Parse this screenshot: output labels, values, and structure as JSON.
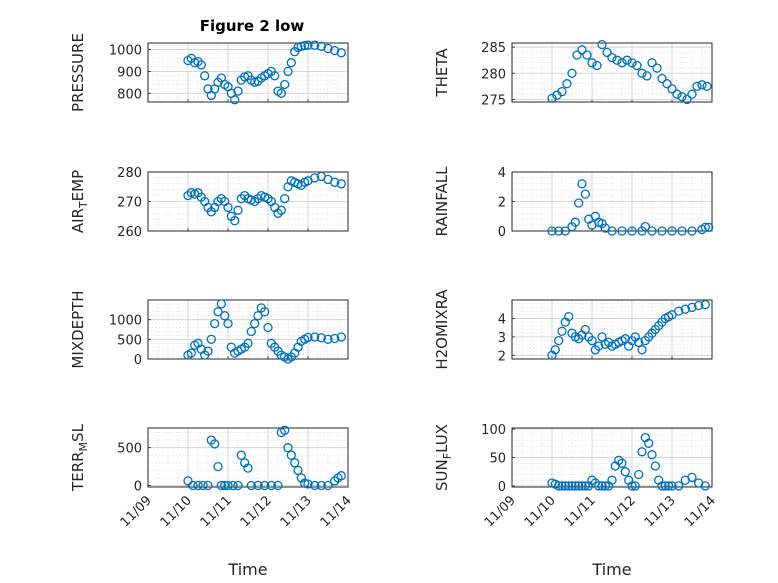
{
  "figure": {
    "title": "Figure 2 low",
    "series_color": "#0072BD"
  },
  "chart_data": [
    {
      "type": "scatter",
      "ylabel": "PRESSURE",
      "ylim": [
        760,
        1030
      ],
      "yticks": [
        800,
        900,
        1000
      ],
      "grid": true,
      "x": [
        "11/10 00:00",
        "11/10 02:00",
        "11/10 04:00",
        "11/10 06:00",
        "11/10 08:00",
        "11/10 10:00",
        "11/10 12:00",
        "11/10 14:00",
        "11/10 16:00",
        "11/10 18:00",
        "11/10 20:00",
        "11/10 22:00",
        "11/11 00:00",
        "11/11 02:00",
        "11/11 04:00",
        "11/11 06:00",
        "11/11 08:00",
        "11/11 10:00",
        "11/11 12:00",
        "11/11 14:00",
        "11/11 16:00",
        "11/11 18:00",
        "11/11 20:00",
        "11/11 22:00",
        "11/12 00:00",
        "11/12 02:00",
        "11/12 04:00",
        "11/12 06:00",
        "11/12 08:00",
        "11/12 10:00",
        "11/12 12:00",
        "11/12 14:00",
        "11/12 16:00",
        "11/12 18:00",
        "11/12 20:00",
        "11/12 22:00",
        "11/13 00:00",
        "11/13 04:00",
        "11/13 08:00",
        "11/13 12:00",
        "11/13 16:00",
        "11/13 20:00"
      ],
      "y": [
        950,
        960,
        940,
        945,
        930,
        880,
        820,
        790,
        820,
        850,
        870,
        840,
        830,
        800,
        770,
        810,
        860,
        875,
        880,
        860,
        850,
        855,
        870,
        880,
        890,
        900,
        880,
        810,
        800,
        840,
        900,
        940,
        990,
        1010,
        1015,
        1018,
        1020,
        1020,
        1015,
        1005,
        995,
        985
      ]
    },
    {
      "type": "scatter",
      "ylabel": "THETA",
      "ylim": [
        274.5,
        285.8
      ],
      "yticks": [
        275,
        280,
        285
      ],
      "grid": true,
      "x": [
        "11/10 00:00",
        "11/10 03:00",
        "11/10 06:00",
        "11/10 09:00",
        "11/10 12:00",
        "11/10 15:00",
        "11/10 18:00",
        "11/10 21:00",
        "11/11 00:00",
        "11/11 03:00",
        "11/11 06:00",
        "11/11 09:00",
        "11/11 12:00",
        "11/11 15:00",
        "11/11 18:00",
        "11/11 21:00",
        "11/12 00:00",
        "11/12 03:00",
        "11/12 06:00",
        "11/12 09:00",
        "11/12 12:00",
        "11/12 15:00",
        "11/12 18:00",
        "11/12 21:00",
        "11/13 00:00",
        "11/13 03:00",
        "11/13 06:00",
        "11/13 09:00",
        "11/13 12:00",
        "11/13 15:00",
        "11/13 18:00",
        "11/13 21:00"
      ],
      "y": [
        275.2,
        275.8,
        276.5,
        278,
        280,
        283.5,
        284.5,
        283.5,
        282,
        281.5,
        285.5,
        284,
        283,
        282.5,
        282,
        282.5,
        282,
        281.5,
        280,
        279.5,
        282,
        281,
        279,
        278,
        277,
        276,
        275.5,
        275,
        276,
        277.5,
        277.8,
        277.5
      ]
    },
    {
      "type": "scatter",
      "ylabel": "AIR_TEMP",
      "ylim": [
        260,
        280
      ],
      "yticks": [
        260,
        270,
        280
      ],
      "grid": true,
      "x": [
        "11/10 00:00",
        "11/10 02:00",
        "11/10 04:00",
        "11/10 06:00",
        "11/10 08:00",
        "11/10 10:00",
        "11/10 12:00",
        "11/10 14:00",
        "11/10 16:00",
        "11/10 18:00",
        "11/10 20:00",
        "11/10 22:00",
        "11/11 00:00",
        "11/11 02:00",
        "11/11 04:00",
        "11/11 06:00",
        "11/11 08:00",
        "11/11 10:00",
        "11/11 12:00",
        "11/11 14:00",
        "11/11 16:00",
        "11/11 18:00",
        "11/11 20:00",
        "11/11 22:00",
        "11/12 00:00",
        "11/12 02:00",
        "11/12 04:00",
        "11/12 06:00",
        "11/12 08:00",
        "11/12 10:00",
        "11/12 12:00",
        "11/12 14:00",
        "11/12 16:00",
        "11/12 18:00",
        "11/12 20:00",
        "11/12 22:00",
        "11/13 00:00",
        "11/13 04:00",
        "11/13 08:00",
        "11/13 12:00",
        "11/13 16:00",
        "11/13 20:00"
      ],
      "y": [
        272,
        273,
        272.5,
        273,
        271.5,
        270,
        268,
        266.5,
        268,
        270,
        271,
        270,
        268,
        265,
        263.5,
        267,
        271,
        272,
        271,
        270.5,
        270,
        271,
        272,
        271.5,
        271,
        270,
        268,
        266,
        267,
        271,
        275,
        277,
        276.5,
        276,
        275.5,
        276.5,
        277,
        278,
        278.5,
        277.5,
        276.5,
        276
      ]
    },
    {
      "type": "scatter",
      "ylabel": "RAINFALL",
      "ylim": [
        0,
        4
      ],
      "yticks": [
        0,
        2,
        4
      ],
      "grid": true,
      "x": [
        "11/10 00:00",
        "11/10 04:00",
        "11/10 08:00",
        "11/10 12:00",
        "11/10 14:00",
        "11/10 16:00",
        "11/10 18:00",
        "11/10 20:00",
        "11/10 22:00",
        "11/11 00:00",
        "11/11 02:00",
        "11/11 04:00",
        "11/11 06:00",
        "11/11 08:00",
        "11/11 12:00",
        "11/11 18:00",
        "11/12 00:00",
        "11/12 06:00",
        "11/12 08:00",
        "11/12 12:00",
        "11/12 18:00",
        "11/13 00:00",
        "11/13 06:00",
        "11/13 12:00",
        "11/13 18:00",
        "11/13 20:00",
        "11/13 22:00"
      ],
      "y": [
        0,
        0,
        0,
        0.3,
        0.6,
        1.9,
        3.2,
        2.5,
        0.8,
        0.4,
        1,
        0.6,
        0.5,
        0.2,
        0,
        0,
        0,
        0,
        0.3,
        0,
        0,
        0,
        0,
        0,
        0.1,
        0.25,
        0.25
      ]
    },
    {
      "type": "scatter",
      "ylabel": "MIXDEPTH",
      "ylim": [
        0,
        1500
      ],
      "yticks": [
        0,
        500,
        1000
      ],
      "grid": true,
      "x": [
        "11/10 00:00",
        "11/10 02:00",
        "11/10 04:00",
        "11/10 06:00",
        "11/10 08:00",
        "11/10 10:00",
        "11/10 12:00",
        "11/10 14:00",
        "11/10 16:00",
        "11/10 18:00",
        "11/10 20:00",
        "11/10 22:00",
        "11/11 00:00",
        "11/11 02:00",
        "11/11 04:00",
        "11/11 06:00",
        "11/11 08:00",
        "11/11 10:00",
        "11/11 12:00",
        "11/11 14:00",
        "11/11 16:00",
        "11/11 18:00",
        "11/11 20:00",
        "11/11 22:00",
        "11/12 00:00",
        "11/12 02:00",
        "11/12 04:00",
        "11/12 06:00",
        "11/12 08:00",
        "11/12 10:00",
        "11/12 12:00",
        "11/12 14:00",
        "11/12 16:00",
        "11/12 18:00",
        "11/12 20:00",
        "11/12 22:00",
        "11/13 00:00",
        "11/13 04:00",
        "11/13 08:00",
        "11/13 12:00",
        "11/13 16:00",
        "11/13 20:00"
      ],
      "y": [
        100,
        150,
        350,
        400,
        250,
        100,
        200,
        500,
        900,
        1200,
        1400,
        1100,
        900,
        300,
        150,
        200,
        250,
        300,
        400,
        700,
        900,
        1100,
        1300,
        1200,
        800,
        400,
        300,
        200,
        100,
        50,
        0,
        50,
        150,
        300,
        450,
        500,
        550,
        560,
        540,
        500,
        520,
        560
      ]
    },
    {
      "type": "scatter",
      "ylabel": "H2OMIXRA",
      "ylim": [
        1.8,
        5
      ],
      "yticks": [
        2,
        3,
        4
      ],
      "grid": true,
      "x": [
        "11/10 00:00",
        "11/10 02:00",
        "11/10 04:00",
        "11/10 06:00",
        "11/10 08:00",
        "11/10 10:00",
        "11/10 12:00",
        "11/10 14:00",
        "11/10 16:00",
        "11/10 18:00",
        "11/10 20:00",
        "11/10 22:00",
        "11/11 00:00",
        "11/11 02:00",
        "11/11 04:00",
        "11/11 06:00",
        "11/11 08:00",
        "11/11 10:00",
        "11/11 12:00",
        "11/11 14:00",
        "11/11 16:00",
        "11/11 18:00",
        "11/11 20:00",
        "11/11 22:00",
        "11/12 00:00",
        "11/12 02:00",
        "11/12 04:00",
        "11/12 06:00",
        "11/12 08:00",
        "11/12 10:00",
        "11/12 12:00",
        "11/12 14:00",
        "11/12 16:00",
        "11/12 18:00",
        "11/12 20:00",
        "11/12 22:00",
        "11/13 00:00",
        "11/13 04:00",
        "11/13 08:00",
        "11/13 12:00",
        "11/13 16:00",
        "11/13 20:00"
      ],
      "y": [
        2,
        2.3,
        2.8,
        3.3,
        3.8,
        4.1,
        3.2,
        3,
        2.9,
        3.1,
        3.4,
        3,
        2.8,
        2.3,
        2.5,
        3,
        2.6,
        2.7,
        2.5,
        2.6,
        2.7,
        2.8,
        2.9,
        2.5,
        2.8,
        3,
        2.7,
        2.3,
        2.8,
        3,
        3.2,
        3.4,
        3.6,
        3.8,
        4,
        4.1,
        4.2,
        4.4,
        4.5,
        4.6,
        4.7,
        4.75
      ]
    },
    {
      "type": "scatter",
      "ylabel": "TERR_MSL",
      "ylim": [
        -20,
        760
      ],
      "yticks": [
        0,
        500
      ],
      "grid": true,
      "xlabel": "Time",
      "xticks": [
        "11/09",
        "11/10",
        "11/11",
        "11/12",
        "11/13",
        "11/14"
      ],
      "x": [
        "11/10 00:00",
        "11/10 03:00",
        "11/10 06:00",
        "11/10 09:00",
        "11/10 12:00",
        "11/10 14:00",
        "11/10 16:00",
        "11/10 18:00",
        "11/10 20:00",
        "11/10 22:00",
        "11/11 00:00",
        "11/11 03:00",
        "11/11 06:00",
        "11/11 08:00",
        "11/11 10:00",
        "11/11 12:00",
        "11/11 14:00",
        "11/11 18:00",
        "11/11 22:00",
        "11/12 02:00",
        "11/12 06:00",
        "11/12 08:00",
        "11/12 10:00",
        "11/12 12:00",
        "11/12 14:00",
        "11/12 16:00",
        "11/12 18:00",
        "11/12 20:00",
        "11/12 22:00",
        "11/13 00:00",
        "11/13 04:00",
        "11/13 08:00",
        "11/13 12:00",
        "11/13 16:00",
        "11/13 18:00",
        "11/13 20:00"
      ],
      "y": [
        60,
        0,
        0,
        0,
        0,
        600,
        550,
        250,
        0,
        0,
        0,
        0,
        0,
        400,
        300,
        230,
        0,
        0,
        0,
        0,
        0,
        700,
        730,
        500,
        400,
        300,
        200,
        100,
        30,
        20,
        0,
        0,
        0,
        60,
        100,
        130
      ]
    },
    {
      "type": "scatter",
      "ylabel": "SUN_FLUX",
      "ylim": [
        -2,
        102
      ],
      "yticks": [
        0,
        50,
        100
      ],
      "grid": true,
      "xlabel": "Time",
      "xticks": [
        "11/09",
        "11/10",
        "11/11",
        "11/12",
        "11/13",
        "11/14"
      ],
      "x": [
        "11/10 00:00",
        "11/10 02:00",
        "11/10 04:00",
        "11/10 06:00",
        "11/10 08:00",
        "11/10 10:00",
        "11/10 12:00",
        "11/10 14:00",
        "11/10 16:00",
        "11/10 18:00",
        "11/10 20:00",
        "11/10 22:00",
        "11/11 00:00",
        "11/11 02:00",
        "11/11 04:00",
        "11/11 06:00",
        "11/11 08:00",
        "11/11 10:00",
        "11/11 12:00",
        "11/11 14:00",
        "11/11 16:00",
        "11/11 18:00",
        "11/11 20:00",
        "11/11 22:00",
        "11/12 00:00",
        "11/12 02:00",
        "11/12 04:00",
        "11/12 06:00",
        "11/12 08:00",
        "11/12 10:00",
        "11/12 12:00",
        "11/12 14:00",
        "11/12 16:00",
        "11/12 18:00",
        "11/12 20:00",
        "11/12 22:00",
        "11/13 00:00",
        "11/13 04:00",
        "11/13 08:00",
        "11/13 12:00",
        "11/13 16:00",
        "11/13 20:00"
      ],
      "y": [
        5,
        3,
        0,
        0,
        0,
        0,
        0,
        0,
        0,
        0,
        0,
        0,
        10,
        5,
        0,
        0,
        0,
        0,
        10,
        35,
        45,
        40,
        25,
        10,
        0,
        0,
        20,
        60,
        85,
        75,
        55,
        35,
        10,
        0,
        0,
        0,
        0,
        0,
        10,
        15,
        5,
        0
      ]
    }
  ]
}
